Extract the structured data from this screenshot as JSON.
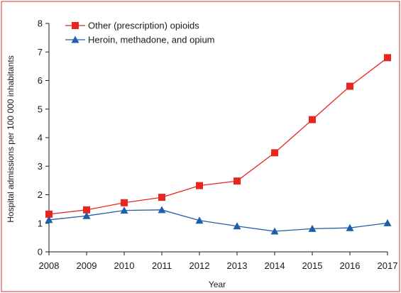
{
  "chart_data": {
    "type": "line",
    "title": "",
    "xlabel": "Year",
    "ylabel": "Hospital admissions per 100 000 inhabitants",
    "x": [
      2008,
      2009,
      2010,
      2011,
      2012,
      2013,
      2014,
      2015,
      2016,
      2017
    ],
    "xlim": [
      2008,
      2017
    ],
    "ylim": [
      0,
      8
    ],
    "yticks": [
      0,
      1,
      2,
      3,
      4,
      5,
      6,
      7,
      8
    ],
    "grid": false,
    "legend_position": "top-left",
    "series": [
      {
        "name": "Other (prescription) opioids",
        "color": "#e8251f",
        "marker": "square",
        "values": [
          1.32,
          1.47,
          1.72,
          1.91,
          2.32,
          2.48,
          3.47,
          4.63,
          5.8,
          6.8
        ]
      },
      {
        "name": "Heroin, methadone, and opium",
        "color": "#1f5fa8",
        "marker": "triangle",
        "values": [
          1.12,
          1.26,
          1.45,
          1.47,
          1.1,
          0.9,
          0.72,
          0.81,
          0.84,
          1.01
        ]
      }
    ]
  },
  "colors": {
    "frame_border": "#d4342c",
    "axis": "#1a1a1a"
  }
}
